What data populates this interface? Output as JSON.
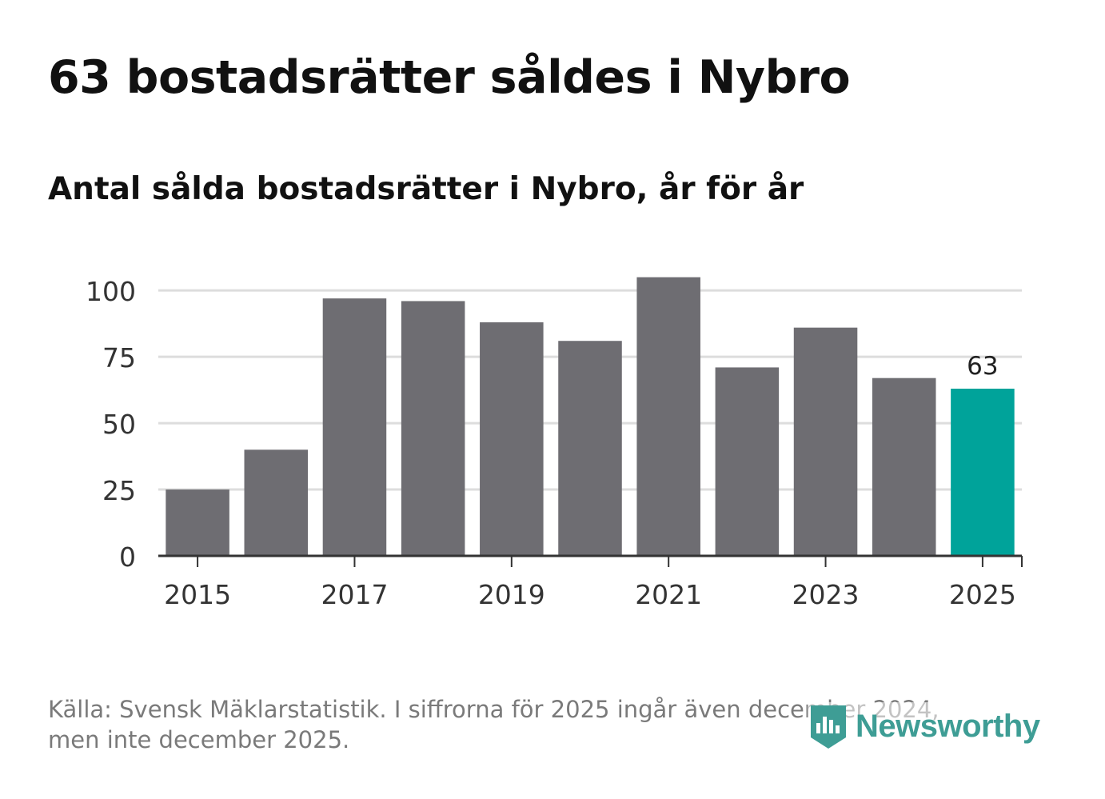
{
  "chart_data": {
    "type": "bar",
    "title": "63 bostadsrätter såldes i Nybro",
    "subtitle": "Antal sålda bostadsrätter i Nybro, år för år",
    "categories": [
      "2015",
      "2016",
      "2017",
      "2018",
      "2019",
      "2020",
      "2021",
      "2022",
      "2023",
      "2024",
      "2025"
    ],
    "values": [
      25,
      40,
      97,
      96,
      88,
      81,
      105,
      71,
      86,
      67,
      63
    ],
    "ylim": [
      0,
      110
    ],
    "yticks": [
      0,
      25,
      50,
      75,
      100
    ],
    "xticks": [
      "2015",
      "2017",
      "2019",
      "2021",
      "2023",
      "2025"
    ],
    "highlight_index": 10,
    "data_label": "63",
    "xlabel": "",
    "ylabel": "",
    "grid": true,
    "colors": {
      "bar": "#6e6d72",
      "highlight": "#00a39a",
      "grid": "#dddddd",
      "axis": "#333333"
    }
  },
  "footnote": {
    "line1": "Källa: Svensk Mäklarstatistik. I siffrorna för 2025 ingår även december 2024,",
    "line2": "men inte december 2025."
  },
  "logo": {
    "text": "Newsworthy",
    "icon": "newsworthy-bar-chart-icon",
    "color": "#3e9d95"
  }
}
